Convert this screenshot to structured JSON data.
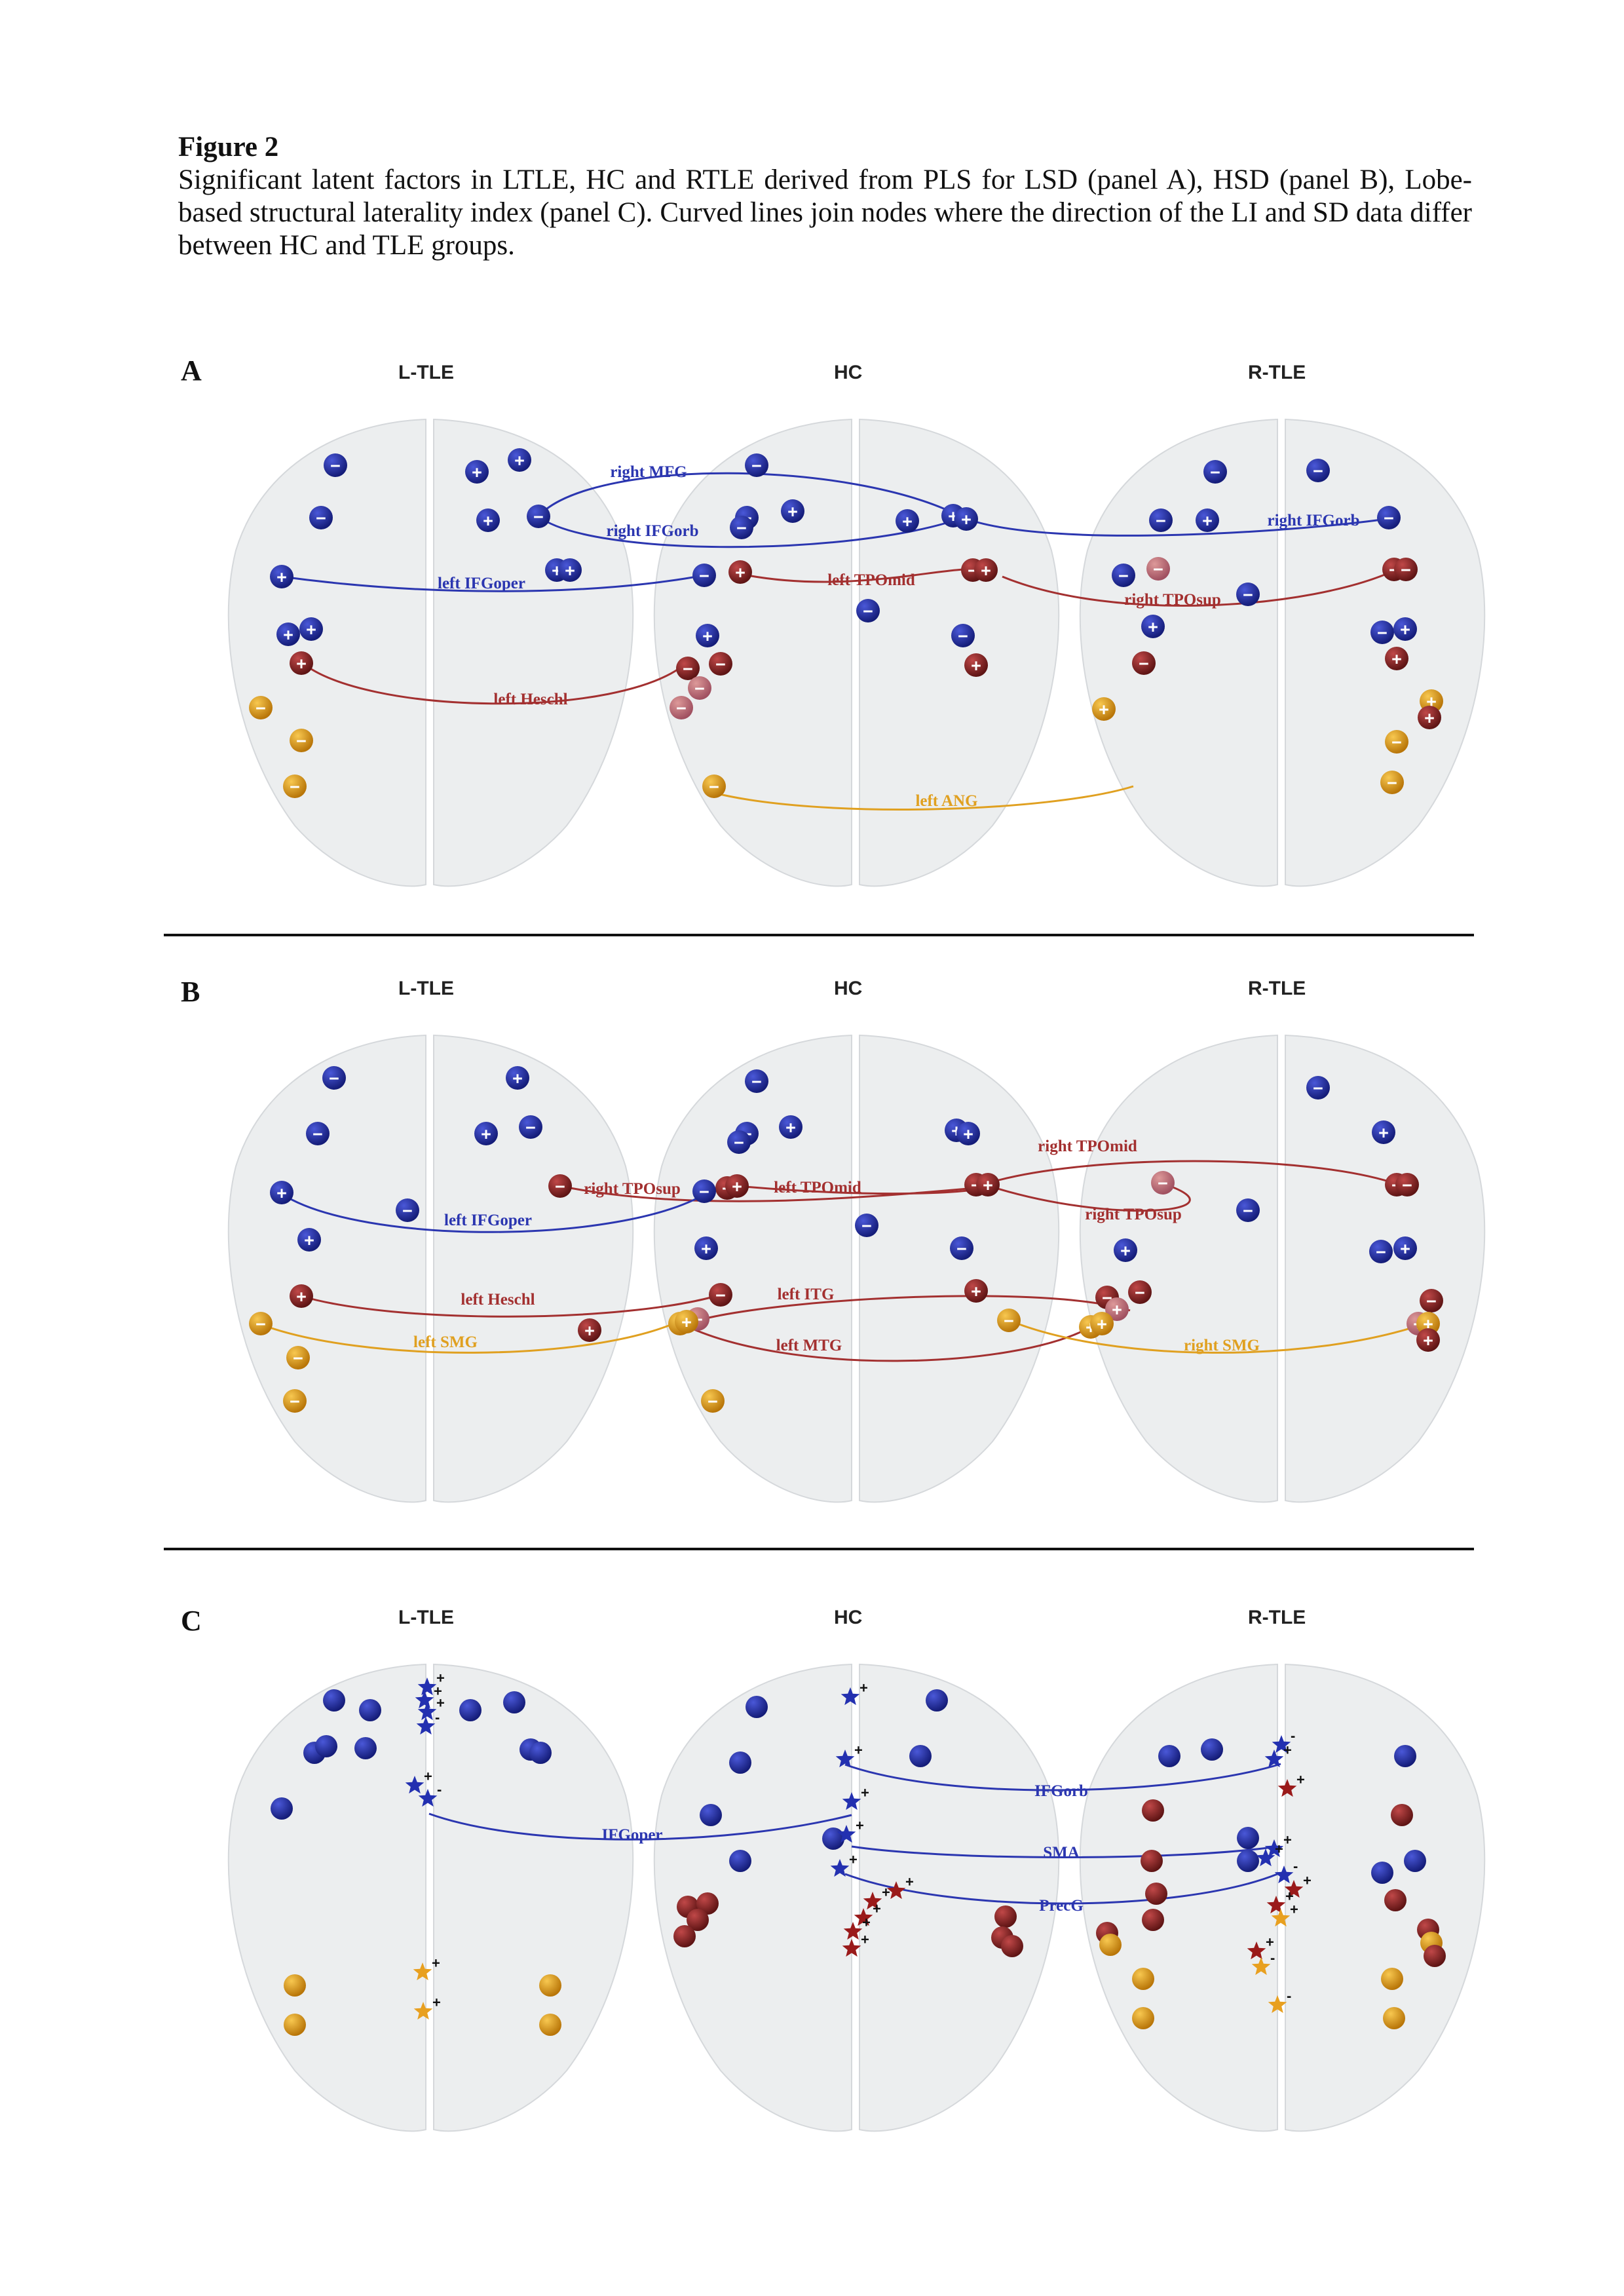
{
  "figure": {
    "title": "Figure 2",
    "caption": "Significant latent factors in LTLE, HC and RTLE derived from PLS for LSD (panel A), HSD (panel B), Lobe-based structural laterality index (panel C). Curved lines join nodes where the direction of the LI and SD data differ between HC and TLE groups."
  },
  "columns": [
    "L-TLE",
    "HC",
    "R-TLE"
  ],
  "colors": {
    "blue": "#1f2a9c",
    "red": "#8e2525",
    "orange": "#e09a14",
    "brain": "#eceeef"
  },
  "panels": [
    {
      "letter": "A",
      "connections": [
        {
          "label": "right MFG",
          "color": "blue"
        },
        {
          "label": "right IFGorb",
          "color": "blue"
        },
        {
          "label": "right IFGorb",
          "color": "blue"
        },
        {
          "label": "left IFGoper",
          "color": "blue"
        },
        {
          "label": "left TPOmid",
          "color": "red"
        },
        {
          "label": "right TPOsup",
          "color": "red"
        },
        {
          "label": "left Heschl",
          "color": "red"
        },
        {
          "label": "left ANG",
          "color": "orange"
        }
      ]
    },
    {
      "letter": "B",
      "connections": [
        {
          "label": "right TPOsup",
          "color": "red"
        },
        {
          "label": "left TPOmid",
          "color": "red"
        },
        {
          "label": "right TPOmid",
          "color": "red"
        },
        {
          "label": "right TPOsup",
          "color": "red"
        },
        {
          "label": "left IFGoper",
          "color": "blue"
        },
        {
          "label": "left Heschl",
          "color": "red"
        },
        {
          "label": "left ITG",
          "color": "red"
        },
        {
          "label": "left SMG",
          "color": "orange"
        },
        {
          "label": "left MTG",
          "color": "red"
        },
        {
          "label": "right SMG",
          "color": "orange"
        }
      ]
    },
    {
      "letter": "C",
      "connections": [
        {
          "label": "IFGorb",
          "color": "blue"
        },
        {
          "label": "IFGoper",
          "color": "blue"
        },
        {
          "label": "SMA",
          "color": "blue"
        },
        {
          "label": "PrecG",
          "color": "blue"
        }
      ]
    }
  ]
}
